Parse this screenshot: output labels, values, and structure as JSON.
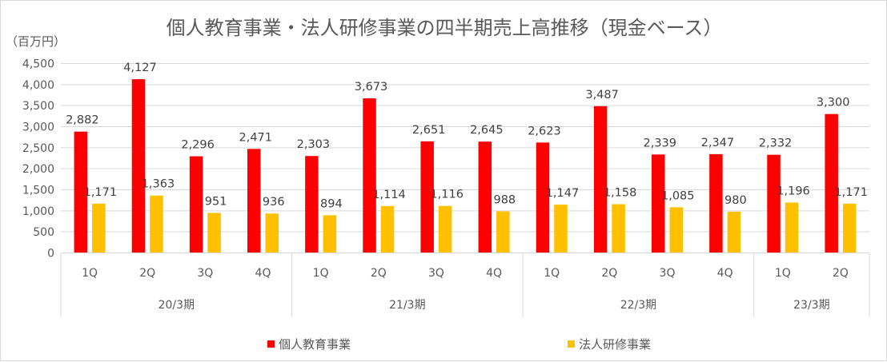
{
  "chart_data": {
    "type": "bar",
    "title": "個人教育事業・法人研修事業の四半期売上高推移（現金ベース）",
    "unit_label": "（百万円）",
    "ylim": [
      0,
      4500
    ],
    "yticks": [
      "0",
      "500",
      "1,000",
      "1,500",
      "2,000",
      "2,500",
      "3,000",
      "3,500",
      "4,000",
      "4,500"
    ],
    "grid": true,
    "legend_position": "bottom",
    "categories": [
      "1Q",
      "2Q",
      "3Q",
      "4Q",
      "1Q",
      "2Q",
      "3Q",
      "4Q",
      "1Q",
      "2Q",
      "3Q",
      "4Q",
      "1Q",
      "2Q"
    ],
    "groups": [
      {
        "label": "20/3期",
        "count": 4
      },
      {
        "label": "21/3期",
        "count": 4
      },
      {
        "label": "22/3期",
        "count": 4
      },
      {
        "label": "23/3期",
        "count": 2
      }
    ],
    "series": [
      {
        "name": "個人教育事業",
        "color": "#ff0000",
        "values": [
          2882,
          4127,
          2296,
          2471,
          2303,
          3673,
          2651,
          2645,
          2623,
          3487,
          2339,
          2347,
          2332,
          3300
        ],
        "labels": [
          "2,882",
          "4,127",
          "2,296",
          "2,471",
          "2,303",
          "3,673",
          "2,651",
          "2,645",
          "2,623",
          "3,487",
          "2,339",
          "2,347",
          "2,332",
          "3,300"
        ]
      },
      {
        "name": "法人研修事業",
        "color": "#ffc000",
        "values": [
          1171,
          1363,
          951,
          936,
          894,
          1114,
          1116,
          988,
          1147,
          1158,
          1085,
          980,
          1196,
          1171
        ],
        "labels": [
          "1,171",
          "1,363",
          "951",
          "936",
          "894",
          "1,114",
          "1,116",
          "988",
          "1,147",
          "1,158",
          "1,085",
          "980",
          "1,196",
          "1,171"
        ]
      }
    ]
  }
}
